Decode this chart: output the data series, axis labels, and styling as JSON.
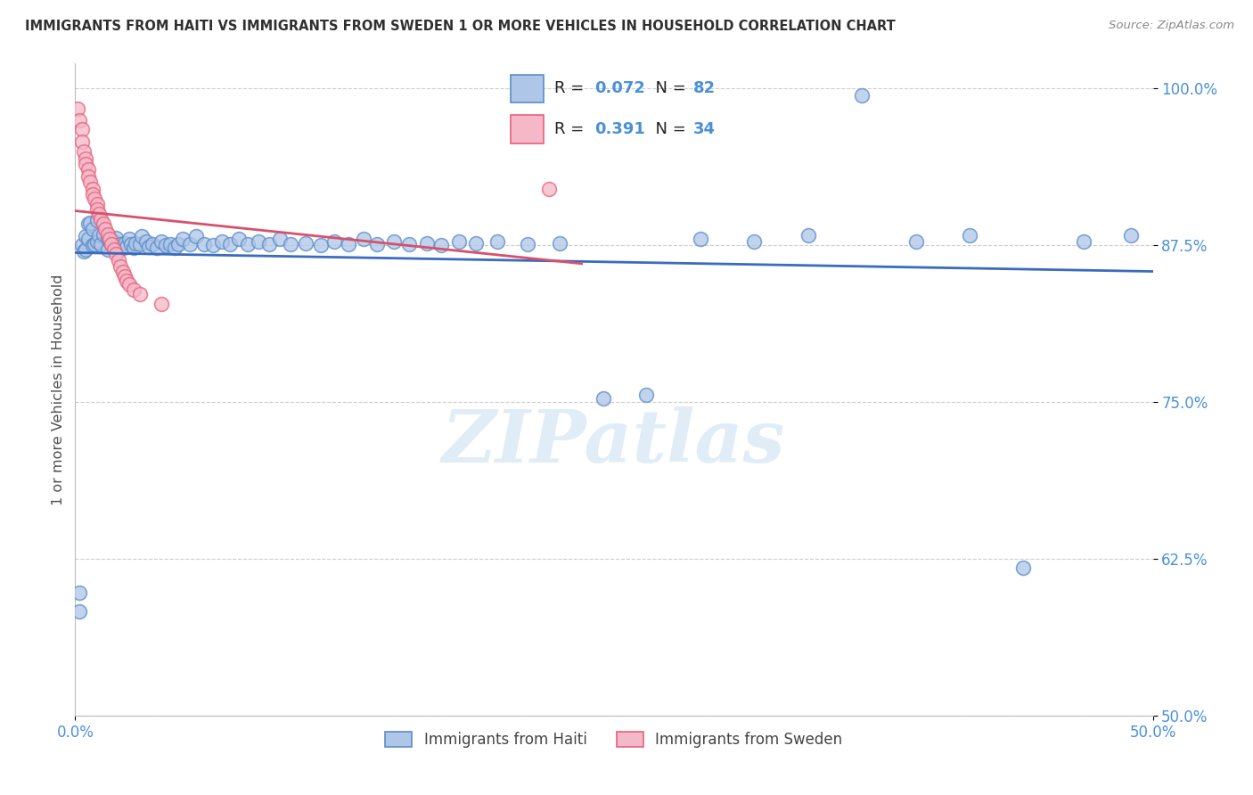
{
  "title": "IMMIGRANTS FROM HAITI VS IMMIGRANTS FROM SWEDEN 1 OR MORE VEHICLES IN HOUSEHOLD CORRELATION CHART",
  "source": "Source: ZipAtlas.com",
  "ylabel": "1 or more Vehicles in Household",
  "xlim": [
    0.0,
    0.5
  ],
  "ylim": [
    0.5,
    1.02
  ],
  "yticks": [
    0.5,
    0.625,
    0.75,
    0.875,
    1.0
  ],
  "ytick_labels": [
    "50.0%",
    "62.5%",
    "75.0%",
    "87.5%",
    "100.0%"
  ],
  "xtick_vals": [
    0.0,
    0.5
  ],
  "xtick_labels": [
    "0.0%",
    "50.0%"
  ],
  "haiti_R": 0.072,
  "haiti_N": 82,
  "sweden_R": 0.391,
  "sweden_N": 34,
  "haiti_color": "#aec6e8",
  "sweden_color": "#f4b8c8",
  "haiti_edge_color": "#5b8cc8",
  "sweden_edge_color": "#e8607a",
  "haiti_line_color": "#3a6bbf",
  "sweden_line_color": "#d9506a",
  "haiti_x": [
    0.002,
    0.003,
    0.004,
    0.005,
    0.005,
    0.006,
    0.006,
    0.007,
    0.008,
    0.008,
    0.009,
    0.01,
    0.01,
    0.011,
    0.012,
    0.013,
    0.015,
    0.015,
    0.016,
    0.017,
    0.018,
    0.019,
    0.02,
    0.021,
    0.022,
    0.023,
    0.024,
    0.025,
    0.026,
    0.027,
    0.028,
    0.03,
    0.031,
    0.033,
    0.034,
    0.036,
    0.038,
    0.04,
    0.042,
    0.044,
    0.046,
    0.048,
    0.05,
    0.053,
    0.056,
    0.06,
    0.064,
    0.068,
    0.072,
    0.076,
    0.08,
    0.085,
    0.09,
    0.095,
    0.1,
    0.107,
    0.114,
    0.12,
    0.127,
    0.134,
    0.14,
    0.148,
    0.155,
    0.163,
    0.17,
    0.178,
    0.186,
    0.196,
    0.21,
    0.225,
    0.245,
    0.265,
    0.29,
    0.315,
    0.34,
    0.365,
    0.39,
    0.415,
    0.44,
    0.468,
    0.49,
    0.002
  ],
  "haiti_y": [
    0.583,
    0.875,
    0.87,
    0.872,
    0.882,
    0.88,
    0.892,
    0.893,
    0.875,
    0.888,
    0.876,
    0.895,
    0.878,
    0.883,
    0.876,
    0.884,
    0.872,
    0.88,
    0.879,
    0.876,
    0.878,
    0.881,
    0.872,
    0.876,
    0.873,
    0.877,
    0.874,
    0.88,
    0.876,
    0.873,
    0.877,
    0.876,
    0.882,
    0.878,
    0.874,
    0.876,
    0.873,
    0.878,
    0.875,
    0.876,
    0.873,
    0.876,
    0.88,
    0.876,
    0.882,
    0.876,
    0.875,
    0.878,
    0.876,
    0.88,
    0.876,
    0.878,
    0.876,
    0.88,
    0.876,
    0.877,
    0.875,
    0.878,
    0.876,
    0.88,
    0.876,
    0.878,
    0.876,
    0.877,
    0.875,
    0.878,
    0.877,
    0.878,
    0.876,
    0.877,
    0.753,
    0.756,
    0.88,
    0.878,
    0.883,
    0.995,
    0.878,
    0.883,
    0.618,
    0.878,
    0.883,
    0.598
  ],
  "sweden_x": [
    0.001,
    0.002,
    0.003,
    0.003,
    0.004,
    0.005,
    0.005,
    0.006,
    0.006,
    0.007,
    0.008,
    0.008,
    0.009,
    0.01,
    0.01,
    0.011,
    0.012,
    0.013,
    0.014,
    0.015,
    0.016,
    0.017,
    0.018,
    0.019,
    0.02,
    0.021,
    0.022,
    0.023,
    0.024,
    0.025,
    0.027,
    0.03,
    0.04,
    0.22
  ],
  "sweden_y": [
    0.984,
    0.975,
    0.968,
    0.958,
    0.95,
    0.944,
    0.94,
    0.936,
    0.93,
    0.926,
    0.92,
    0.916,
    0.912,
    0.908,
    0.904,
    0.9,
    0.896,
    0.892,
    0.888,
    0.884,
    0.88,
    0.876,
    0.872,
    0.868,
    0.863,
    0.858,
    0.854,
    0.85,
    0.847,
    0.844,
    0.84,
    0.836,
    0.828,
    0.92
  ],
  "watermark": "ZIPatlas",
  "background_color": "#ffffff",
  "grid_color": "#cccccc",
  "title_color": "#303030",
  "axis_label_color": "#505050",
  "tick_label_color": "#4a90d9"
}
